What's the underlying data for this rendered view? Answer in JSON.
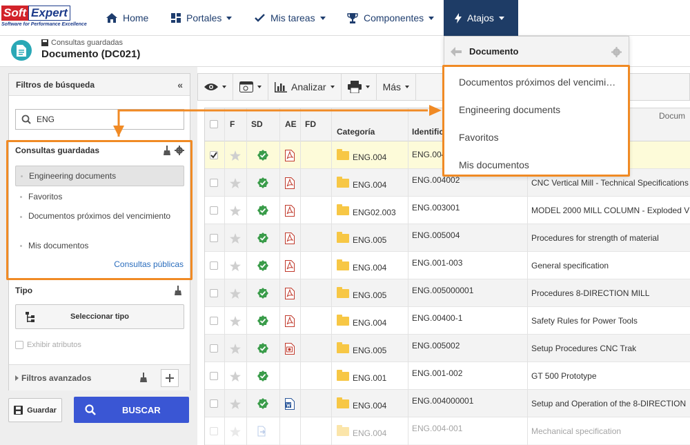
{
  "logo": {
    "soft": "Soft",
    "expert": "Expert",
    "tagline": "Software for Performance Excellence"
  },
  "nav": {
    "home": "Home",
    "portales": "Portales",
    "mis_tareas": "Mis tareas",
    "componentes": "Componentes",
    "atajos": "Atajos"
  },
  "header": {
    "breadcrumb": "Consultas guardadas",
    "title": "Documento (DC021)"
  },
  "filters": {
    "title": "Filtros de búsqueda",
    "search_value": "ENG",
    "saved_title": "Consultas guardadas",
    "saved_items": [
      {
        "label": "Engineering documents"
      },
      {
        "label": "Favoritos"
      },
      {
        "label": "Documentos próximos del vencimiento"
      },
      {
        "label": "Mis documentos"
      }
    ],
    "public_link": "Consultas públicas",
    "tipo_label": "Tipo",
    "select_type": "Seleccionar tipo",
    "show_attributes": "Exhibir atributos",
    "advanced": "Filtros avanzados"
  },
  "actions": {
    "save": "Guardar",
    "search": "BUSCAR"
  },
  "toolbar": {
    "analyze": "Analizar",
    "more": "Más"
  },
  "grid": {
    "columns": {
      "f": "F",
      "sd": "SD",
      "ae": "AE",
      "fd": "FD",
      "category": "Categoría",
      "identifier": "Identific",
      "group": "Docum"
    },
    "rows": [
      {
        "checked": true,
        "category": "ENG.004",
        "id": "ENG.004",
        "title": "",
        "ae": "pdf",
        "sd": "ok"
      },
      {
        "checked": false,
        "category": "ENG.004",
        "id": "ENG.004002",
        "title": "CNC Vertical Mill - Technical Specifications",
        "ae": "pdf",
        "sd": "ok"
      },
      {
        "checked": false,
        "category": "ENG02.003",
        "id": "ENG.003001",
        "title": "MODEL 2000 MILL COLUMN - Exploded V",
        "ae": "pdf",
        "sd": "ok"
      },
      {
        "checked": false,
        "category": "ENG.005",
        "id": "ENG.005004",
        "title": "Procedures for strength of material",
        "ae": "pdf",
        "sd": "ok"
      },
      {
        "checked": false,
        "category": "ENG.004",
        "id": "ENG.001-003",
        "title": "General specification",
        "ae": "pdf",
        "sd": "ok"
      },
      {
        "checked": false,
        "category": "ENG.005",
        "id": "ENG.005000001",
        "title": "Procedures 8-DIRECTION MILL",
        "ae": "pdf",
        "sd": "ok"
      },
      {
        "checked": false,
        "category": "ENG.004",
        "id": "ENG.00400-1",
        "title": "Safety Rules for Power Tools",
        "ae": "pdf",
        "sd": "ok"
      },
      {
        "checked": false,
        "category": "ENG.005",
        "id": "ENG.005002",
        "title": "Setup Procedures CNC Trak",
        "ae": "ppt",
        "sd": "ok"
      },
      {
        "checked": false,
        "category": "ENG.001",
        "id": "ENG.001-002",
        "title": "GT 500 Prototype",
        "ae": "",
        "sd": "ok"
      },
      {
        "checked": false,
        "category": "ENG.004",
        "id": "ENG.004000001",
        "title": "Setup and Operation of the 8-DIRECTION",
        "ae": "doc",
        "sd": "ok"
      },
      {
        "checked": false,
        "category": "ENG.004",
        "id": "ENG.004-001",
        "title": "Mechanical specification",
        "ae": "",
        "sd": "arrow"
      }
    ]
  },
  "dropdown": {
    "title": "Documento",
    "items": [
      {
        "label": "Documentos próximos del vencimi…"
      },
      {
        "label": "Engineering documents"
      },
      {
        "label": "Favoritos"
      },
      {
        "label": "Mis documentos"
      }
    ]
  },
  "colors": {
    "nav_active": "#1e3c66",
    "highlight": "#f08a24",
    "primary_button": "#3a56d4",
    "selected_row": "#fdfbd9"
  }
}
